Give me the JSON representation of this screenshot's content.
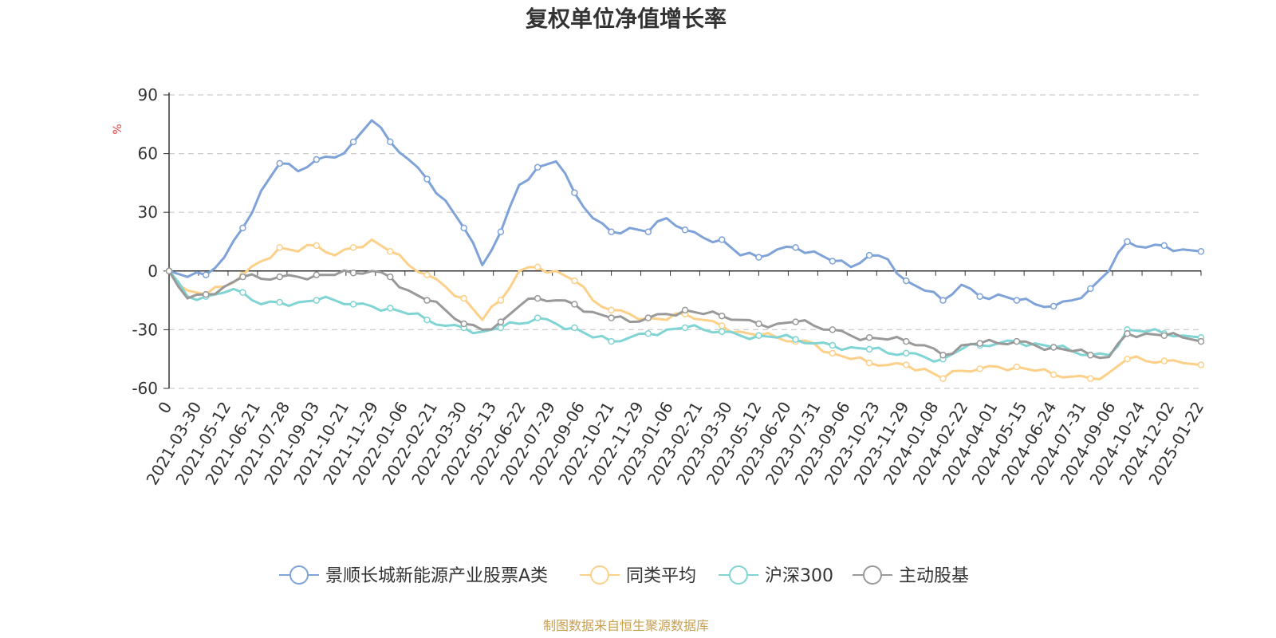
{
  "chart_data": {
    "type": "line",
    "title": "复权单位净值增长率",
    "ylabel": "%",
    "ylim": [
      -60,
      90
    ],
    "yticks": [
      -60,
      -30,
      0,
      30,
      60,
      90
    ],
    "grid": true,
    "legend_position": "bottom",
    "source_note": "制图数据来自恒生聚源数据库",
    "x_tick_labels": [
      "0",
      "2021-03-30",
      "2021-05-12",
      "2021-06-21",
      "2021-07-28",
      "2021-09-03",
      "2021-10-21",
      "2021-11-29",
      "2022-01-06",
      "2022-02-21",
      "2022-03-30",
      "2022-05-13",
      "2022-06-22",
      "2022-07-29",
      "2022-09-06",
      "2022-10-21",
      "2022-11-29",
      "2023-01-06",
      "2023-02-21",
      "2023-03-30",
      "2023-05-12",
      "2023-06-20",
      "2023-07-31",
      "2023-09-06",
      "2023-10-23",
      "2023-11-29",
      "2024-01-08",
      "2024-02-22",
      "2024-04-01",
      "2024-05-15",
      "2024-06-24",
      "2024-07-31",
      "2024-09-06",
      "2024-10-24",
      "2024-12-02",
      "2025-01-22"
    ],
    "series": [
      {
        "name": "景顺长城新能源产业股票A类",
        "color": "#7fa3d8",
        "values": [
          0,
          -3,
          -2,
          7,
          22,
          41,
          55,
          51,
          57,
          58,
          66,
          77,
          66,
          57,
          47,
          36,
          22,
          3,
          20,
          44,
          53,
          56,
          40,
          27,
          20,
          22,
          20,
          27,
          21,
          17,
          16,
          8,
          7,
          11,
          12,
          10,
          5,
          2,
          8,
          6,
          -5,
          -10,
          -15,
          -7,
          -13,
          -12,
          -15,
          -17,
          -18,
          -15,
          -9,
          0,
          15,
          12,
          13,
          11,
          10
        ]
      },
      {
        "name": "同类平均",
        "color": "#fdd08a",
        "values": [
          0,
          -10,
          -12,
          -8,
          -2,
          5,
          12,
          10,
          13,
          8,
          12,
          16,
          10,
          3,
          -2,
          -8,
          -14,
          -25,
          -15,
          0,
          2,
          0,
          -5,
          -15,
          -20,
          -22,
          -24,
          -25,
          -22,
          -25,
          -28,
          -31,
          -33,
          -34,
          -36,
          -37,
          -42,
          -45,
          -47,
          -48,
          -48,
          -50,
          -55,
          -51,
          -50,
          -49,
          -49,
          -51,
          -53,
          -54,
          -55,
          -52,
          -45,
          -46,
          -46,
          -47,
          -48
        ]
      },
      {
        "name": "沪深300",
        "color": "#80d4d4",
        "values": [
          0,
          -13,
          -13,
          -11,
          -11,
          -17,
          -16,
          -16,
          -15,
          -15,
          -17,
          -18,
          -19,
          -22,
          -25,
          -28,
          -29,
          -31,
          -29,
          -27,
          -24,
          -27,
          -29,
          -34,
          -36,
          -34,
          -32,
          -30,
          -29,
          -30,
          -31,
          -33,
          -33,
          -34,
          -35,
          -37,
          -38,
          -39,
          -40,
          -42,
          -42,
          -44,
          -45,
          -40,
          -38,
          -37,
          -36,
          -37,
          -39,
          -41,
          -43,
          -43,
          -30,
          -31,
          -32,
          -33,
          -34
        ]
      },
      {
        "name": "主动股基",
        "color": "#999999",
        "values": [
          0,
          -14,
          -12,
          -8,
          -3,
          -4,
          -3,
          -3,
          -2,
          -2,
          -1,
          0,
          -3,
          -10,
          -15,
          -20,
          -27,
          -30,
          -26,
          -18,
          -14,
          -15,
          -17,
          -21,
          -24,
          -26,
          -24,
          -22,
          -20,
          -22,
          -23,
          -25,
          -27,
          -27,
          -26,
          -28,
          -30,
          -33,
          -34,
          -35,
          -36,
          -38,
          -43,
          -38,
          -37,
          -37,
          -36,
          -38,
          -39,
          -41,
          -43,
          -44,
          -32,
          -32,
          -33,
          -34,
          -36
        ]
      }
    ]
  }
}
